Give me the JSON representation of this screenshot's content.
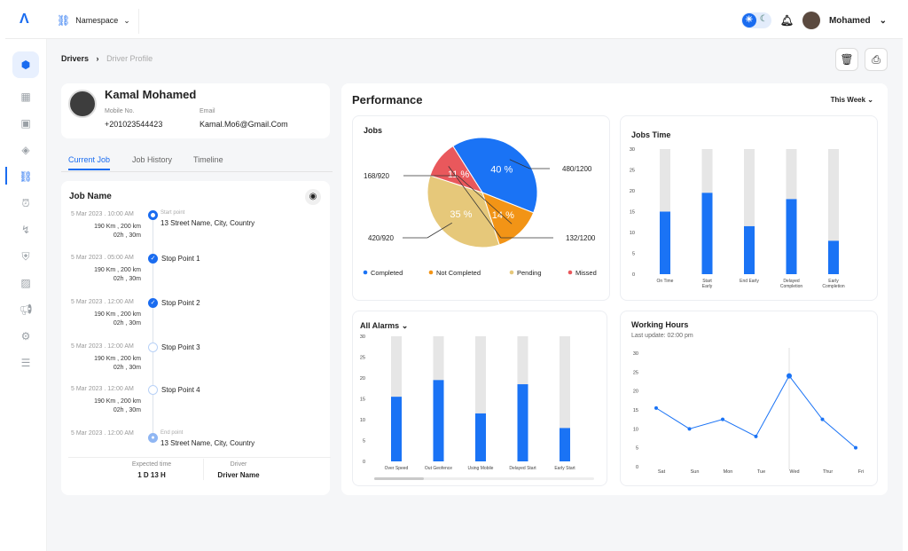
{
  "topbar": {
    "logo": "Λ",
    "namespace_label": "Namespace",
    "user_name": "Mohamed"
  },
  "breadcrumb": {
    "parent": "Drivers",
    "current": "Driver Profile"
  },
  "profile": {
    "name": "Kamal Mohamed",
    "mobile_label": "Mobile No.",
    "mobile": "+201023544423",
    "email_label": "Email",
    "email": "Kamal.Mo6@Gmail.Com"
  },
  "tabs": [
    "Current Job",
    "Job History",
    "Timeline"
  ],
  "job": {
    "title": "Job Name",
    "stops": [
      {
        "date": "5 Mar 2023 . 10:00 AM",
        "sub": "Start point",
        "name": "13 Street Name, City, Country",
        "km": "190 Km , 200 km",
        "dur": "02h , 30m"
      },
      {
        "date": "5 Mar 2023 . 05:00 AM",
        "name": "Stop Point 1",
        "km": "190 Km , 200 km",
        "dur": "02h , 30m"
      },
      {
        "date": "5 Mar 2023 . 12:00 AM",
        "name": "Stop Point 2",
        "km": "190 Km , 200 km",
        "dur": "02h , 30m"
      },
      {
        "date": "5 Mar 2023 . 12:00 AM",
        "name": "Stop Point 3",
        "km": "190 Km , 200 km",
        "dur": "02h , 30m"
      },
      {
        "date": "5 Mar 2023 . 12:00 AM",
        "name": "Stop Point 4",
        "km": "190 Km , 200 km",
        "dur": "02h , 30m"
      },
      {
        "date": "5 Mar 2023 . 12:00 AM",
        "sub": "End point",
        "name": "13 Street Name, City, Country"
      }
    ],
    "expected_label": "Expected time",
    "expected_value": "1 D 13 H",
    "driver_label": "Driver",
    "driver_value": "Driver Name"
  },
  "performance": {
    "title": "Performance",
    "period": "This Week"
  },
  "colors": {
    "accent": "#1a6cf0",
    "completed": "#1a73f5",
    "not_completed": "#f29416",
    "pending": "#e6c87a",
    "missed": "#e9585c",
    "bar_bg": "#e6e6e6"
  },
  "chart_data": [
    {
      "type": "pie",
      "title": "Jobs",
      "labels": [
        "Completed",
        "Not Completed",
        "Pending",
        "Missed"
      ],
      "values": [
        40,
        14,
        35,
        11
      ],
      "slice_labels": [
        "40 %",
        "14 %",
        "35 %",
        "11 %"
      ],
      "callouts": [
        "480/1200",
        "168/920",
        "420/920",
        "132/1200"
      ]
    },
    {
      "type": "bar",
      "title": "Jobs Time",
      "categories": [
        "On Time",
        "Start Early",
        "End Early",
        "Delayed Completion",
        "Early Completion"
      ],
      "values": [
        15,
        19.5,
        11.5,
        18,
        8
      ],
      "max": 30,
      "yticks": [
        0,
        5,
        10,
        15,
        20,
        25,
        30
      ]
    },
    {
      "type": "bar",
      "title": "All Alarms",
      "categories": [
        "Over Speed",
        "Out Geofence",
        "Using Mobile",
        "Delayed Start",
        "Early Start"
      ],
      "values": [
        15.5,
        19.5,
        11.5,
        18.5,
        8
      ],
      "max": 30,
      "yticks": [
        0,
        5,
        10,
        15,
        20,
        25,
        30
      ]
    },
    {
      "type": "line",
      "title": "Working Hours",
      "subtitle": "Last update: 02:00 pm",
      "categories": [
        "Sat",
        "Sun",
        "Mon",
        "Tue",
        "Wed",
        "Thur",
        "Fri"
      ],
      "values": [
        15.5,
        10,
        12.5,
        8,
        24,
        12.5,
        5
      ],
      "max": 30,
      "yticks": [
        0,
        5,
        10,
        15,
        20,
        25,
        30
      ]
    }
  ]
}
